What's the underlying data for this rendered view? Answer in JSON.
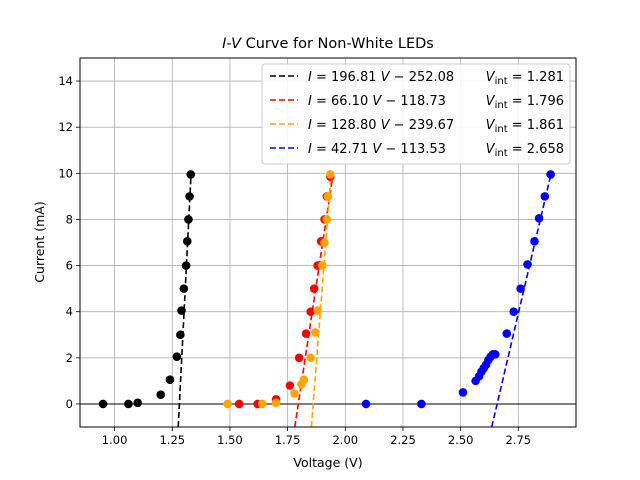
{
  "chart_data": {
    "type": "scatter",
    "title_italic": "I-V",
    "title_rest": " Curve for Non-White LEDs",
    "xlabel": "Voltage (V)",
    "ylabel": "Current (mA)",
    "xlim": [
      0.85,
      3.0
    ],
    "ylim": [
      -1,
      15
    ],
    "xticks": [
      "1.00",
      "1.25",
      "1.50",
      "1.75",
      "2.00",
      "2.25",
      "2.50",
      "2.75"
    ],
    "xtick_values": [
      1.0,
      1.25,
      1.5,
      1.75,
      2.0,
      2.25,
      2.5,
      2.75
    ],
    "yticks": [
      "0",
      "2",
      "4",
      "6",
      "8",
      "10",
      "12",
      "14"
    ],
    "ytick_values": [
      0,
      2,
      4,
      6,
      8,
      10,
      12,
      14
    ],
    "grid": true,
    "legend_position": "top-right",
    "series": [
      {
        "color": "#000000",
        "slope": 196.81,
        "intercept": -252.08,
        "legend_eq": "I = 196.81 V − 252.08",
        "legend_vint": "V_int = 1.281",
        "vint": 1.281,
        "x": [
          0.95,
          1.06,
          1.1,
          1.2,
          1.24,
          1.27,
          1.285,
          1.29,
          1.3,
          1.31,
          1.315,
          1.32,
          1.325,
          1.33
        ],
        "y": [
          0,
          0,
          0.05,
          0.4,
          1.05,
          2.05,
          3.0,
          4.05,
          5.0,
          6.0,
          7.05,
          8.0,
          9.0,
          9.95
        ]
      },
      {
        "color": "#ff0000",
        "slope": 66.1,
        "intercept": -118.73,
        "legend_eq": "I = 66.10 V − 118.73",
        "legend_vint": "V_int = 1.796",
        "vint": 1.796,
        "x": [
          1.54,
          1.62,
          1.7,
          1.76,
          1.8,
          1.83,
          1.85,
          1.865,
          1.88,
          1.895,
          1.91,
          1.92,
          1.935
        ],
        "y": [
          0,
          0,
          0.2,
          0.8,
          2.0,
          3.05,
          4.0,
          5.0,
          6.0,
          7.05,
          8.0,
          9.0,
          9.85
        ]
      },
      {
        "color": "#ffa500",
        "slope": 128.8,
        "intercept": -239.67,
        "legend_eq": "I = 128.80 V − 239.67",
        "legend_vint": "V_int = 1.861",
        "vint": 1.861,
        "x": [
          1.49,
          1.64,
          1.7,
          1.78,
          1.81,
          1.82,
          1.85,
          1.87,
          1.88,
          1.9,
          1.91,
          1.92,
          1.925,
          1.935
        ],
        "y": [
          0,
          0,
          0.05,
          0.45,
          0.85,
          1.05,
          2.0,
          3.1,
          4.05,
          6.0,
          7.0,
          8.0,
          9.0,
          9.95
        ]
      },
      {
        "color": "#0000ff",
        "slope": 42.71,
        "intercept": -113.53,
        "legend_eq": "I = 42.71 V − 113.53",
        "legend_vint": "V_int = 2.658",
        "vint": 2.658,
        "x": [
          2.09,
          2.33,
          2.51,
          2.565,
          2.58,
          2.59,
          2.6,
          2.61,
          2.62,
          2.63,
          2.64,
          2.65,
          2.7,
          2.73,
          2.76,
          2.79,
          2.82,
          2.84,
          2.865,
          2.89
        ],
        "y": [
          0,
          0,
          0.5,
          1.0,
          1.2,
          1.4,
          1.55,
          1.7,
          1.9,
          2.05,
          2.15,
          2.15,
          3.05,
          4.0,
          5.0,
          6.05,
          7.05,
          8.05,
          9.0,
          9.95
        ]
      }
    ]
  }
}
